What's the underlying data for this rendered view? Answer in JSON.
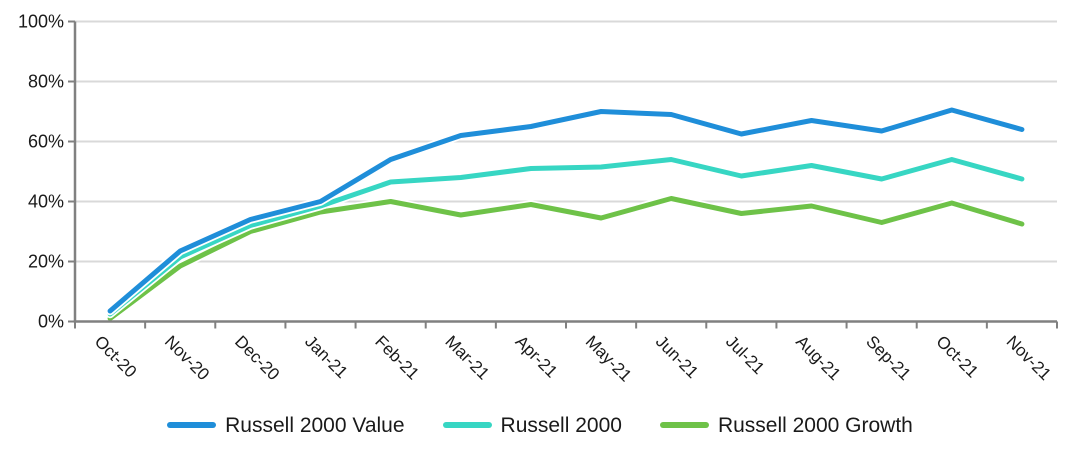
{
  "chart_data": {
    "type": "line",
    "title": "",
    "xlabel": "",
    "ylabel": "",
    "categories": [
      "Oct-20",
      "Nov-20",
      "Dec-20",
      "Jan-21",
      "Feb-21",
      "Mar-21",
      "Apr-21",
      "May-21",
      "Jun-21",
      "Jul-21",
      "Aug-21",
      "Sep-21",
      "Oct-21",
      "Nov-21"
    ],
    "series": [
      {
        "name": "Russell 2000 Value",
        "color": "#1f8ed9",
        "values": [
          3.5,
          23.5,
          34,
          40,
          54,
          62,
          65,
          70,
          69,
          62.5,
          67,
          63.5,
          70.5,
          64
        ]
      },
      {
        "name": "Russell 2000",
        "color": "#37d6c3",
        "values": [
          2.5,
          21.5,
          32,
          38.5,
          46.5,
          48,
          51,
          51.5,
          54,
          48.5,
          52,
          47.5,
          54,
          47.5
        ]
      },
      {
        "name": "Russell 2000 Growth",
        "color": "#6ec248",
        "values": [
          1,
          18.5,
          30,
          36.5,
          40,
          35.5,
          39,
          34.5,
          41,
          36,
          38.5,
          33,
          39.5,
          32.5
        ]
      }
    ],
    "ylim": [
      0,
      100
    ],
    "ytick_step": 20,
    "ytick_labels": [
      "0%",
      "20%",
      "40%",
      "60%",
      "80%",
      "100%"
    ],
    "grid": true,
    "legend_position": "bottom",
    "styles": {
      "grid_color": "#d9d9d9",
      "axis_color": "#808080",
      "label_color": "#1a1a1a",
      "halo_color": "#ffffff",
      "background": "#ffffff"
    }
  }
}
